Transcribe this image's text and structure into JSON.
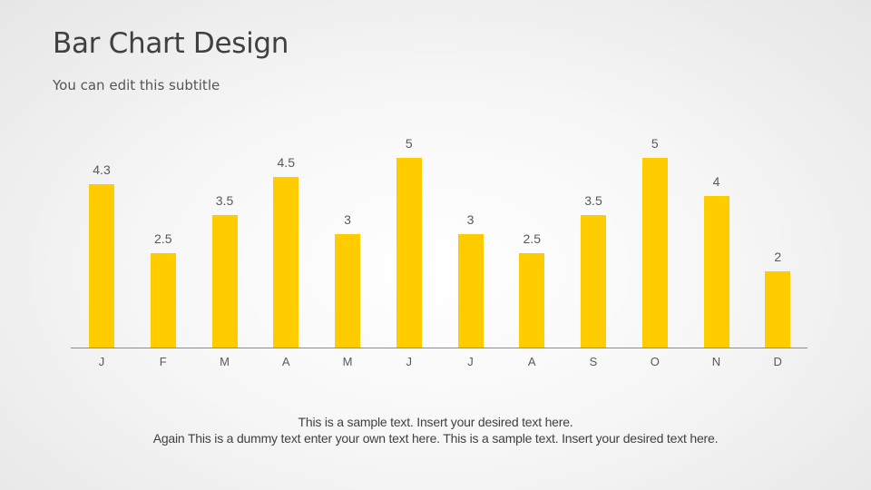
{
  "slide": {
    "title": "Bar Chart Design",
    "subtitle": "You can edit this subtitle",
    "footer_lines": [
      "This is a sample text. Insert your desired text here.",
      "Again This is a dummy text enter your own text here. This is a sample text. Insert your desired text here."
    ]
  },
  "colors": {
    "bar": "#ffcc00",
    "axis": "#8c8c8c",
    "text": "#595959"
  },
  "chart_data": {
    "type": "bar",
    "title": "",
    "xlabel": "",
    "ylabel": "",
    "categories": [
      "J",
      "F",
      "M",
      "A",
      "M",
      "J",
      "J",
      "A",
      "S",
      "O",
      "N",
      "D"
    ],
    "values": [
      4.3,
      2.5,
      3.5,
      4.5,
      3,
      5,
      3,
      2.5,
      3.5,
      5,
      4,
      2
    ],
    "value_labels": [
      "4.3",
      "2.5",
      "3.5",
      "4.5",
      "3",
      "5",
      "3",
      "2.5",
      "3.5",
      "5",
      "4",
      "2"
    ],
    "ylim": [
      0,
      5
    ],
    "grid": false,
    "legend": "none",
    "data_labels": true
  }
}
